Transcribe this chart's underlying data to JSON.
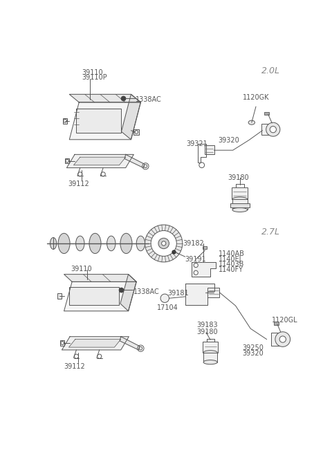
{
  "bg_color": "#ffffff",
  "line_color": "#555555",
  "text_color": "#555555",
  "label_2_0L": "2.0L",
  "label_2_7L": "2.7L",
  "parts": {
    "ecm1_label1": "39110",
    "ecm1_label2": "39110P",
    "ecm1_bracket": "39112",
    "ecm1_bolt": "1338AC",
    "ecm2_label": "39110",
    "ecm2_bracket": "39112",
    "ecm2_bolt": "1338AC",
    "sensor_bolt_2L": "1120GK",
    "sensor_wire_2L": "39320",
    "sensor_bracket_2L": "39321",
    "sensor_cam_2L": "39180",
    "crank_ring": "39191",
    "bolt_group": [
      "1140AB",
      "1140EJ",
      "11403B",
      "1140FY"
    ],
    "mount_bracket_27": "39182",
    "sensor_27": "39181",
    "grommet_27": "17104",
    "cam_sensor_27": "39180",
    "exhaust_27": "39183",
    "sensor_bolt_27": "1120GL",
    "pair_27": [
      "39250",
      "39320"
    ]
  }
}
